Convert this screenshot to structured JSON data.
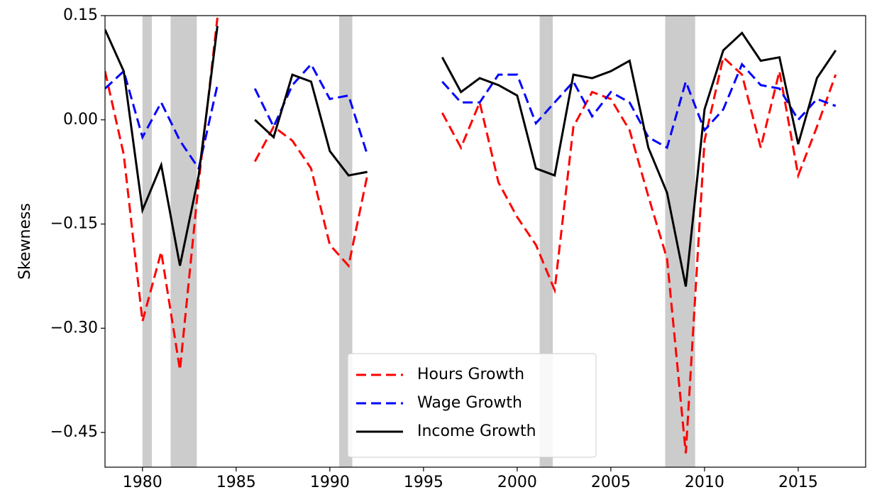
{
  "chart_data": {
    "type": "line",
    "y_label": "Skewness",
    "x": [
      1978,
      1979,
      1980,
      1981,
      1982,
      1983,
      1984,
      1985,
      1986,
      1987,
      1988,
      1989,
      1990,
      1991,
      1992,
      1993,
      1994,
      1995,
      1996,
      1997,
      1998,
      1999,
      2000,
      2001,
      2002,
      2003,
      2004,
      2005,
      2006,
      2007,
      2008,
      2009,
      2010,
      2011,
      2012,
      2013,
      2014,
      2015,
      2016,
      2017
    ],
    "series": [
      {
        "name": "Hours Growth",
        "color": "#ff0000",
        "linestyle": "dashed",
        "values": [
          0.07,
          -0.05,
          -0.29,
          -0.19,
          -0.36,
          -0.09,
          0.147,
          null,
          -0.06,
          -0.01,
          -0.03,
          -0.07,
          -0.18,
          -0.21,
          -0.08,
          null,
          null,
          null,
          0.01,
          -0.04,
          0.025,
          -0.09,
          -0.14,
          -0.18,
          -0.245,
          -0.01,
          0.04,
          0.03,
          -0.015,
          -0.11,
          -0.2,
          -0.48,
          -0.03,
          0.09,
          0.065,
          -0.04,
          0.07,
          -0.08,
          -0.01,
          0.065
        ]
      },
      {
        "name": "Wage Growth",
        "color": "#0000ff",
        "linestyle": "dashed",
        "values": [
          0.045,
          0.07,
          -0.025,
          0.025,
          -0.03,
          -0.07,
          0.05,
          null,
          0.045,
          -0.01,
          0.05,
          0.08,
          0.03,
          0.035,
          -0.05,
          null,
          null,
          null,
          0.055,
          0.025,
          0.025,
          0.065,
          0.065,
          -0.005,
          0.025,
          0.055,
          0.005,
          0.04,
          0.025,
          -0.025,
          -0.04,
          0.055,
          -0.015,
          0.015,
          0.08,
          0.05,
          0.045,
          0.0,
          0.03,
          0.02
        ]
      },
      {
        "name": "Income Growth",
        "color": "#000000",
        "linestyle": "solid",
        "values": [
          0.13,
          0.07,
          -0.13,
          -0.065,
          -0.21,
          -0.08,
          0.135,
          null,
          0.0,
          -0.025,
          0.065,
          0.055,
          -0.045,
          -0.08,
          -0.075,
          null,
          null,
          null,
          0.09,
          0.04,
          0.06,
          0.05,
          0.035,
          -0.07,
          -0.08,
          0.065,
          0.06,
          0.07,
          0.085,
          -0.04,
          -0.105,
          -0.24,
          0.015,
          0.1,
          0.125,
          0.085,
          0.09,
          -0.035,
          0.06,
          0.1
        ]
      }
    ],
    "shaded_regions": [
      [
        1980,
        1980.5
      ],
      [
        1981.5,
        1982.9
      ],
      [
        1990.5,
        1991.2
      ],
      [
        2001.2,
        2001.9
      ],
      [
        2007.9,
        2009.5
      ]
    ],
    "shade_color": "#cccccc",
    "xlim": [
      1978,
      2018.6
    ],
    "xticks": [
      1980,
      1985,
      1990,
      1995,
      2000,
      2005,
      2010,
      2015
    ],
    "ylim": [
      -0.5,
      0.15
    ],
    "yticks": [
      0.15,
      {
        "value": 0,
        "label": "0.00"
      },
      {
        "value": -0.15,
        "label": "−0.15"
      },
      {
        "value": -0.3,
        "label": "−0.30"
      },
      {
        "value": -0.45,
        "label": "−0.45"
      }
    ],
    "legend": "lower center"
  }
}
